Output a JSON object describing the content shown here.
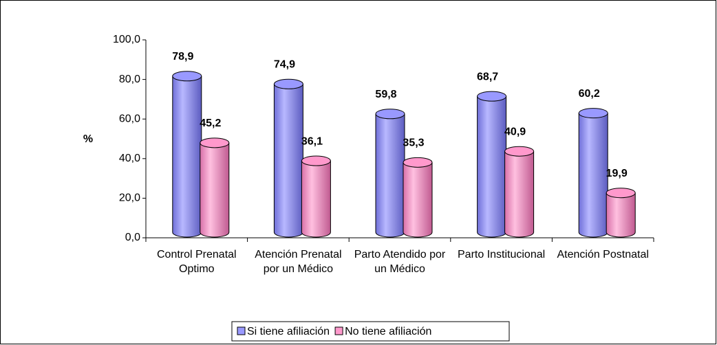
{
  "chart_data": {
    "type": "bar",
    "y_label": "%",
    "categories": [
      "Control Prenatal Optimo",
      "Atención Prenatal por un Médico",
      "Parto Atendido por un Médico",
      "Parto Institucional",
      "Atención Postnatal"
    ],
    "series": [
      {
        "name": "Si tiene afiliación",
        "color": "#9999ff",
        "values": [
          78.9,
          74.9,
          59.8,
          68.7,
          60.2
        ],
        "value_labels": [
          "78,9",
          "74,9",
          "59,8",
          "68,7",
          "60,2"
        ]
      },
      {
        "name": "No tiene afiliación",
        "color": "#ff99cc",
        "values": [
          45.2,
          36.1,
          35.3,
          40.9,
          19.9
        ],
        "value_labels": [
          "45,2",
          "36,1",
          "35,3",
          "40,9",
          "19,9"
        ]
      }
    ],
    "ylim": [
      0,
      100
    ],
    "yticks": [
      {
        "value": 0,
        "label": "0,0"
      },
      {
        "value": 20,
        "label": "20,0"
      },
      {
        "value": 40,
        "label": "40,0"
      },
      {
        "value": 60,
        "label": "60,0"
      },
      {
        "value": 80,
        "label": "80,0"
      },
      {
        "value": 100,
        "label": "100,0"
      }
    ],
    "legend": "bottom"
  }
}
